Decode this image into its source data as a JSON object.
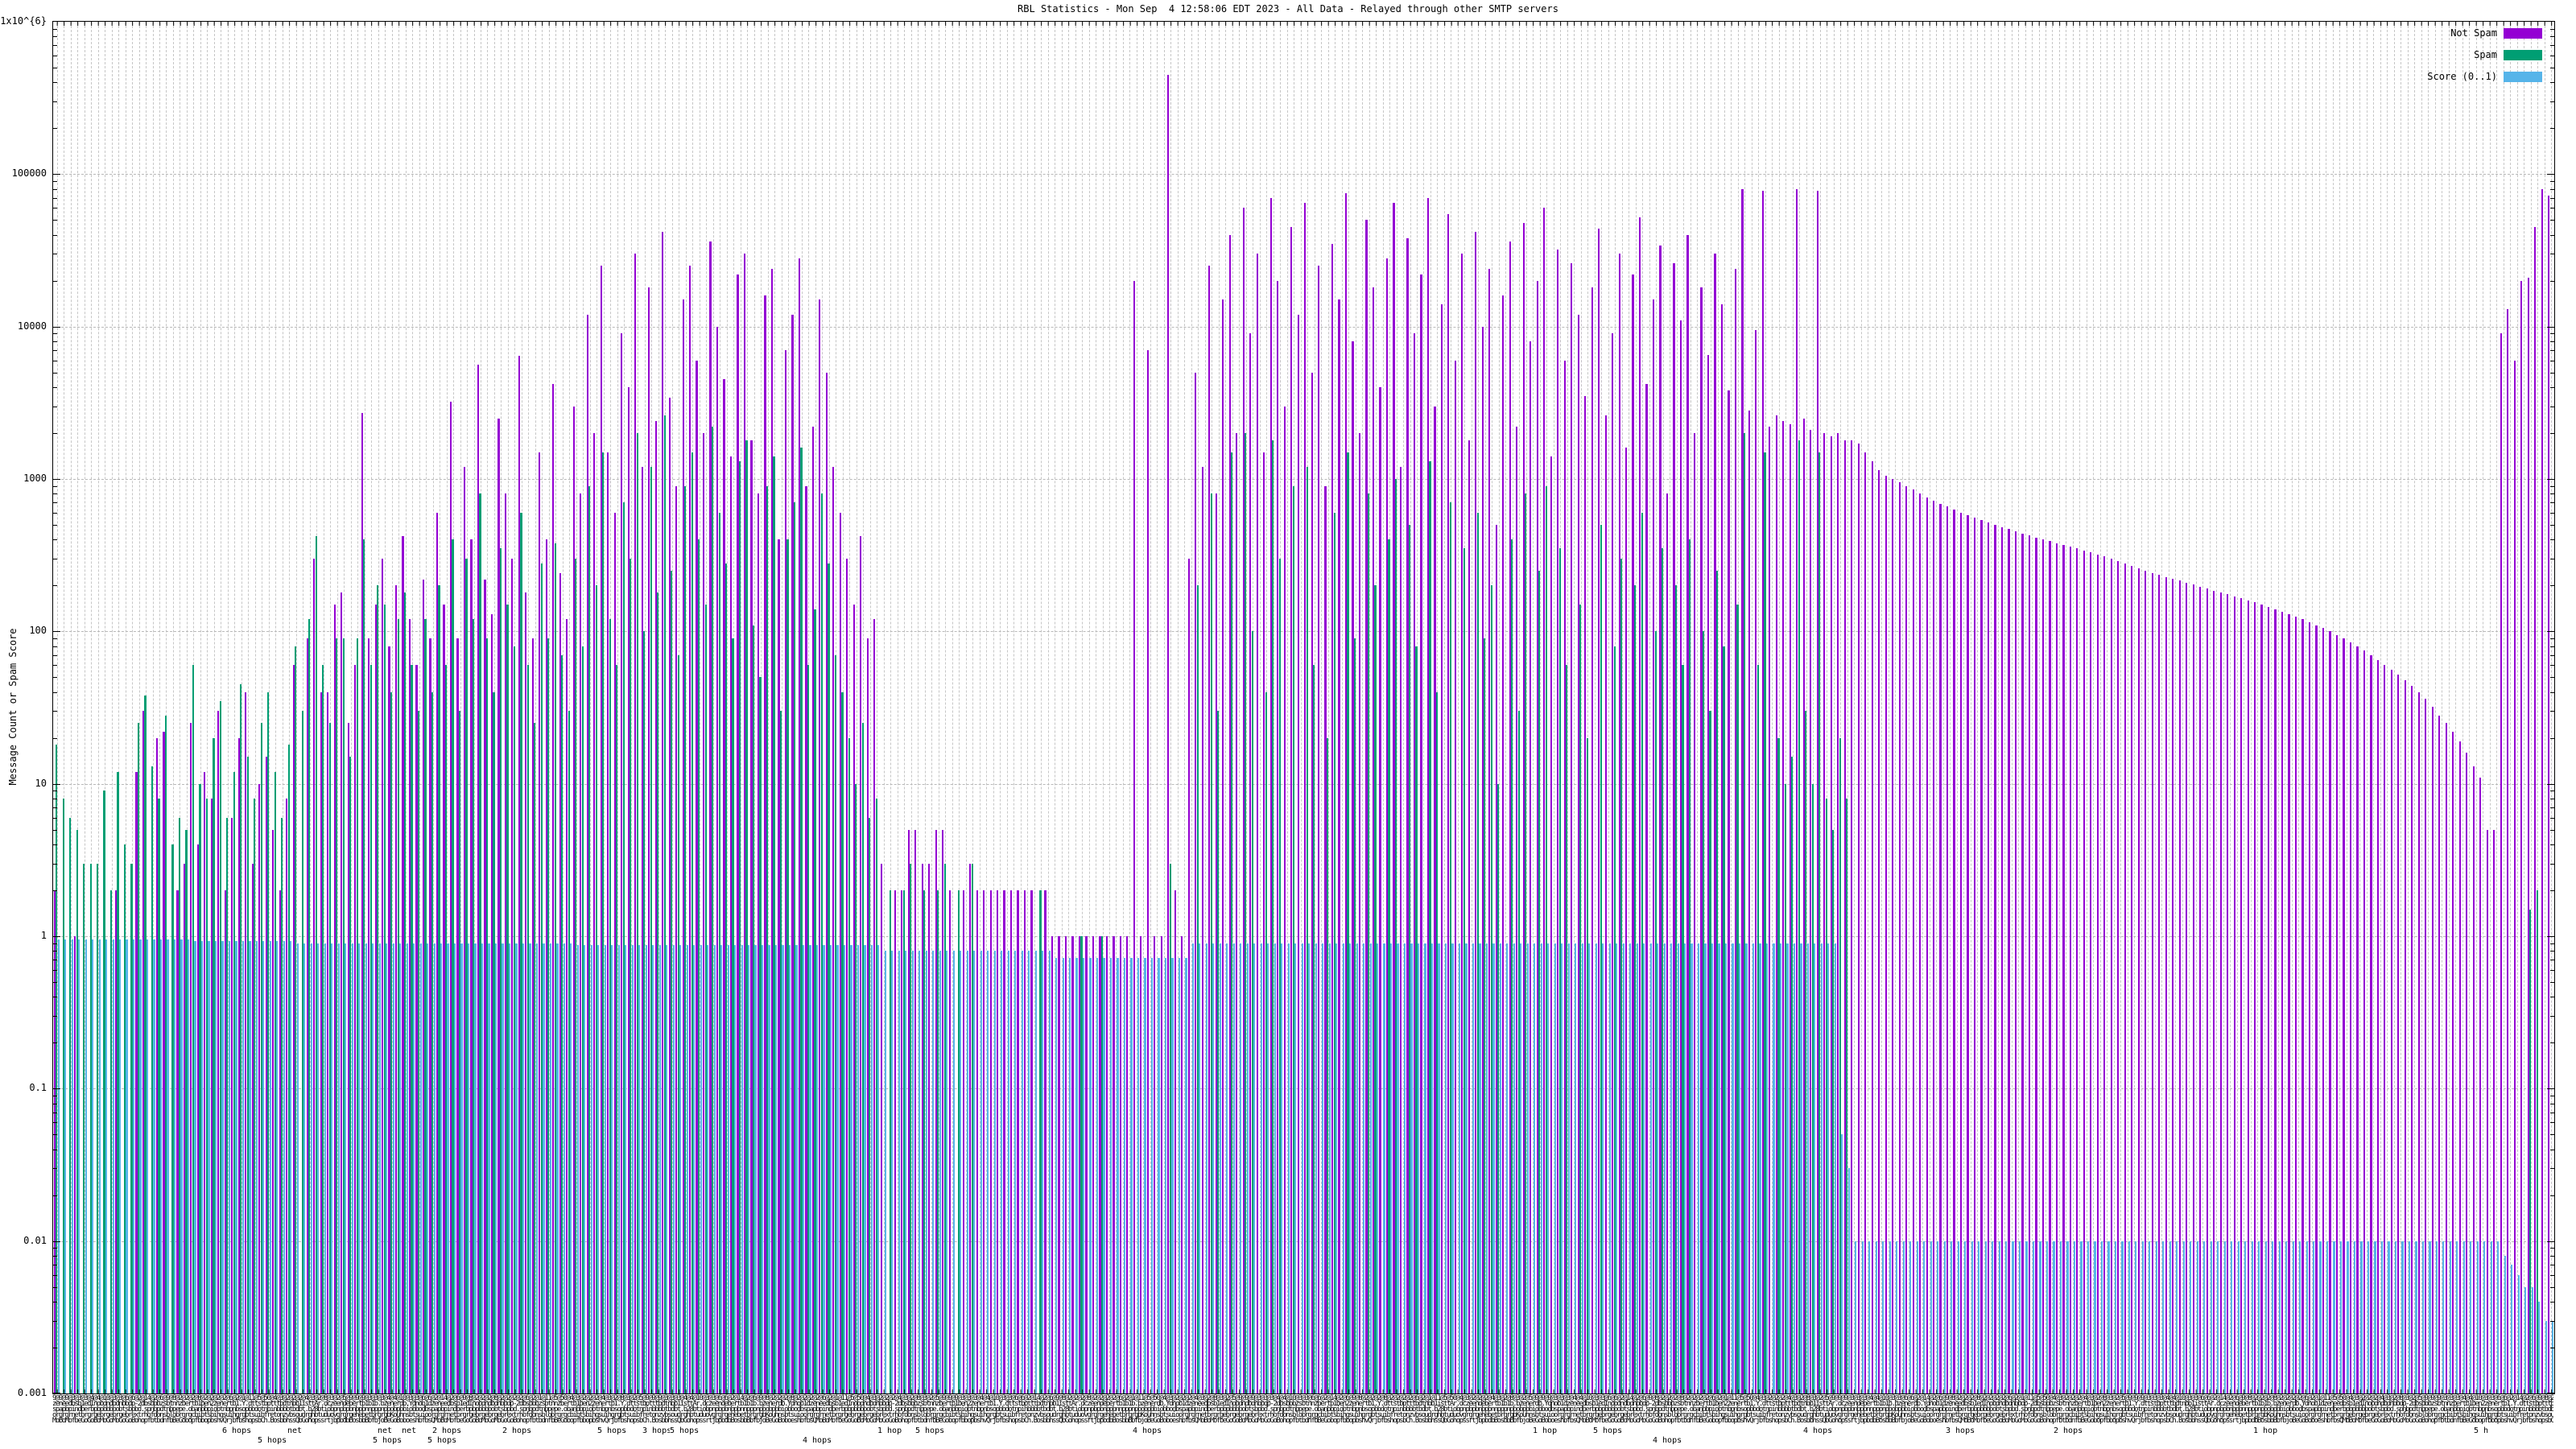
{
  "chart_data": {
    "type": "bar",
    "title": "RBL Statistics - Mon Sep  4 12:58:06 EDT 2023 - All Data - Relayed through other SMTP servers",
    "ylabel": "Message Count or Spam Score",
    "y_scale": "log",
    "ylim": [
      0.001,
      1000000
    ],
    "grid": true,
    "legend_position": "top-right",
    "y_axis": {
      "ticks": [
        {
          "label": "1x10^{6}",
          "value": 1000000
        },
        {
          "label": "100000",
          "value": 100000
        },
        {
          "label": "10000",
          "value": 10000
        },
        {
          "label": "1000",
          "value": 1000
        },
        {
          "label": "100",
          "value": 100
        },
        {
          "label": "10",
          "value": 10
        },
        {
          "label": "1",
          "value": 1
        },
        {
          "label": "0.1",
          "value": 0.1
        },
        {
          "label": "0.01",
          "value": 0.01
        },
        {
          "label": "0.001",
          "value": 0.001
        }
      ]
    },
    "x_axis": {
      "tick_label_style": "dense-overlapping-hostnames-illegible",
      "overlap_samples": [
        "9@9@9@3@3@3@4@4@10@3@3@6@6@2@14@2@6@9@8@2@2@2@8@2@2@2@2@6@2@1@11@5@50@4@3@2@2@2@4@3@2@8@3@2@5@",
        "zeneedbsb1edInobdndbdnbbdp-2dbsbbbzsbtnnzbertb1ben2zenertb1.Y.dttstbptttbdtnbb1isttAr.dczeendebertb1b1b.bzenerdb.Ydnob1d",
        "spapbpindberbpbpbbbbobtsbpbd.spnbpdtnbpepe.obanbbpiobtnbpnbsopbbdotnpinbbbbtbdbt.b28btiobpnpbpbnbpbnnpppnpbobpbbiobbodb",
        "orgrgrnetbrgrgebrgebrgebrextrhofdonsblobrgrgcbibtsbihgsuihgrgbtsuibfretonzvbsoudrghbtuduovgrgrgehebetbrgrgbKouhnsbtsuio",
        "MoBoMofbeGoGoBoMoGoMoGoGoBohopfbtbdnfbBeGobopfbbopbshvQrjbfbshopsbCh.BosbbhssQbGohopssrtjbpbdbBosbbBbfbjoBeGoBoboeshbfbsQ"
      ],
      "legible_fragments": [
        {
          "row": 0,
          "xf": 0.068,
          "text": "6 hops"
        },
        {
          "row": 0,
          "xf": 0.094,
          "text": "net"
        },
        {
          "row": 1,
          "xf": 0.082,
          "text": "5 hops"
        },
        {
          "row": 0,
          "xf": 0.13,
          "text": "net  net"
        },
        {
          "row": 1,
          "xf": 0.128,
          "text": "5 hops"
        },
        {
          "row": 0,
          "xf": 0.152,
          "text": "2 hops"
        },
        {
          "row": 1,
          "xf": 0.15,
          "text": "5 hops"
        },
        {
          "row": 0,
          "xf": 0.18,
          "text": "2 hops"
        },
        {
          "row": 0,
          "xf": 0.218,
          "text": "5 hops"
        },
        {
          "row": 0,
          "xf": 0.236,
          "text": "3 hops"
        },
        {
          "row": 0,
          "xf": 0.247,
          "text": "5 hops"
        },
        {
          "row": 0,
          "xf": 0.33,
          "text": "1 hop"
        },
        {
          "row": 1,
          "xf": 0.3,
          "text": "4 hops"
        },
        {
          "row": 0,
          "xf": 0.345,
          "text": "5 hops"
        },
        {
          "row": 0,
          "xf": 0.432,
          "text": "4 hops"
        },
        {
          "row": 0,
          "xf": 0.592,
          "text": "1 hop"
        },
        {
          "row": 0,
          "xf": 0.616,
          "text": "5 hops"
        },
        {
          "row": 1,
          "xf": 0.64,
          "text": "4 hops"
        },
        {
          "row": 0,
          "xf": 0.7,
          "text": "4 hops"
        },
        {
          "row": 0,
          "xf": 0.757,
          "text": "3 hops"
        },
        {
          "row": 0,
          "xf": 0.8,
          "text": "2 hops"
        },
        {
          "row": 0,
          "xf": 0.88,
          "text": "1 hop"
        },
        {
          "row": 0,
          "xf": 0.968,
          "text": "5 h"
        }
      ]
    },
    "series": [
      {
        "name": "Not Spam",
        "color": "#9400d3",
        "values": [
          2,
          0,
          0,
          1,
          0,
          0,
          0,
          0,
          0,
          2,
          0,
          0,
          12,
          30,
          0,
          20,
          22,
          0,
          2,
          3,
          25,
          4,
          12,
          8,
          30,
          2,
          6,
          20,
          40,
          3,
          10,
          15,
          5,
          2,
          8,
          60,
          0,
          90,
          300,
          40,
          40,
          150,
          180,
          25,
          60,
          2700,
          90,
          150,
          300,
          80,
          200,
          420,
          120,
          60,
          220,
          90,
          600,
          150,
          3200,
          90,
          1200,
          400,
          5600,
          220,
          130,
          2500,
          800,
          300,
          6400,
          180,
          90,
          1500,
          400,
          4200,
          240,
          120,
          3000,
          800,
          12000,
          2000,
          25000,
          1500,
          600,
          9000,
          4000,
          30000,
          1200,
          18000,
          2400,
          42000,
          3400,
          900,
          15000,
          25000,
          6000,
          2000,
          36000,
          10000,
          4500,
          1400,
          22000,
          30000,
          1800,
          800,
          16000,
          24000,
          400,
          7000,
          12000,
          28000,
          900,
          2200,
          15000,
          5000,
          1200,
          600,
          300,
          150,
          420,
          90,
          120,
          3,
          0,
          2,
          2,
          5,
          5,
          3,
          3,
          5,
          5,
          2,
          0,
          2,
          3,
          2,
          2,
          2,
          2,
          2,
          2,
          2,
          2,
          2,
          0,
          2,
          1,
          1,
          1,
          1,
          1,
          1,
          1,
          1,
          1,
          1,
          1,
          1,
          20000,
          1,
          7000,
          1,
          1,
          450000,
          2,
          1,
          300,
          5000,
          1200,
          25000,
          800,
          15000,
          40000,
          2000,
          60000,
          9000,
          30000,
          1500,
          70000,
          20000,
          3000,
          45000,
          12000,
          65000,
          5000,
          25000,
          900,
          35000,
          15000,
          75000,
          8000,
          2000,
          50000,
          18000,
          4000,
          28000,
          65000,
          1200,
          38000,
          9000,
          22000,
          70000,
          3000,
          14000,
          55000,
          6000,
          30000,
          1800,
          42000,
          10000,
          24000,
          500,
          16000,
          36000,
          2200,
          48000,
          8000,
          20000,
          60000,
          1400,
          32000,
          6000,
          26000,
          12000,
          3500,
          18000,
          44000,
          2600,
          9000,
          30000,
          1600,
          22000,
          52000,
          4200,
          15000,
          34000,
          800,
          26000,
          11000,
          40000,
          2000,
          18000,
          6500,
          30000,
          14000,
          3800,
          24000,
          80000,
          2800,
          9500,
          78000,
          2200,
          2600,
          2400,
          2300,
          80000,
          2500,
          2100,
          78000,
          2000,
          1900,
          2000,
          1800,
          1800,
          1700,
          1500,
          1300,
          1150,
          1050,
          1000,
          950,
          900,
          850,
          800,
          760,
          720,
          690,
          660,
          630,
          600,
          580,
          560,
          540,
          520,
          500,
          485,
          470,
          455,
          440,
          425,
          410,
          400,
          390,
          380,
          370,
          360,
          350,
          340,
          330,
          320,
          310,
          300,
          290,
          280,
          270,
          260,
          250,
          242,
          235,
          228,
          221,
          215,
          209,
          203,
          197,
          191,
          185,
          180,
          175,
          170,
          165,
          160,
          155,
          150,
          145,
          140,
          135,
          130,
          125,
          120,
          115,
          110,
          105,
          100,
          95,
          90,
          85,
          80,
          75,
          70,
          65,
          60,
          56,
          52,
          48,
          44,
          40,
          36,
          32,
          28,
          25,
          22,
          19,
          16,
          13,
          11,
          5,
          5,
          9000,
          13000,
          6000,
          20000,
          21000,
          45000,
          80000,
          72000
        ]
      },
      {
        "name": "Spam",
        "color": "#009e73",
        "values": [
          18,
          8,
          6,
          5,
          3,
          3,
          3,
          9,
          2,
          12,
          4,
          3,
          25,
          38,
          13,
          8,
          28,
          4,
          6,
          5,
          60,
          10,
          8,
          20,
          35,
          6,
          12,
          45,
          15,
          8,
          25,
          40,
          12,
          6,
          18,
          80,
          30,
          120,
          420,
          60,
          25,
          90,
          90,
          15,
          90,
          400,
          60,
          200,
          150,
          40,
          120,
          180,
          60,
          30,
          120,
          40,
          200,
          60,
          400,
          30,
          300,
          120,
          800,
          90,
          40,
          350,
          150,
          80,
          600,
          60,
          25,
          280,
          90,
          380,
          70,
          30,
          300,
          80,
          900,
          200,
          1500,
          120,
          60,
          700,
          300,
          2000,
          100,
          1200,
          180,
          2600,
          250,
          70,
          900,
          1500,
          400,
          150,
          2200,
          600,
          280,
          90,
          1300,
          1800,
          110,
          50,
          900,
          1400,
          30,
          400,
          700,
          1600,
          60,
          140,
          800,
          280,
          70,
          40,
          20,
          10,
          25,
          6,
          8,
          0,
          2,
          0,
          2,
          3,
          0,
          2,
          0,
          2,
          3,
          0,
          2,
          0,
          3,
          0,
          0,
          0,
          0,
          0,
          0,
          0,
          0,
          0,
          2,
          0,
          0,
          0,
          0,
          0,
          1,
          0,
          0,
          1,
          0,
          0,
          0,
          0,
          0,
          0,
          0,
          0,
          0,
          3,
          0,
          0,
          0,
          200,
          0,
          800,
          30,
          0,
          1500,
          0,
          2000,
          100,
          0,
          40,
          1800,
          300,
          0,
          900,
          0,
          1200,
          60,
          0,
          20,
          600,
          0,
          1500,
          90,
          0,
          800,
          200,
          0,
          400,
          1000,
          0,
          500,
          80,
          0,
          1300,
          40,
          0,
          700,
          0,
          350,
          0,
          600,
          90,
          200,
          10,
          0,
          400,
          30,
          800,
          0,
          250,
          900,
          0,
          350,
          60,
          0,
          150,
          20,
          0,
          500,
          0,
          80,
          300,
          0,
          200,
          600,
          0,
          100,
          350,
          0,
          200,
          60,
          400,
          0,
          100,
          30,
          250,
          80,
          0,
          150,
          2000,
          0,
          60,
          1500,
          0,
          20,
          10,
          15,
          1800,
          30,
          10,
          1500,
          8,
          5,
          20,
          8,
          0,
          0,
          0,
          0,
          0,
          0,
          0,
          0,
          0,
          0,
          0,
          0,
          0,
          0,
          0,
          0,
          0,
          0,
          0,
          0,
          0,
          0,
          0,
          0,
          0,
          0,
          0,
          0,
          0,
          0,
          0,
          0,
          0,
          0,
          0,
          0,
          0,
          0,
          0,
          0,
          0,
          0,
          0,
          0,
          0,
          0,
          0,
          0,
          0,
          0,
          0,
          0,
          0,
          0,
          0,
          0,
          0,
          0,
          0,
          0,
          0,
          0,
          0,
          0,
          0,
          0,
          0,
          0,
          0,
          0,
          0,
          0,
          0,
          0,
          0,
          0,
          0,
          0,
          0,
          0,
          0,
          0,
          0,
          0,
          0,
          0,
          0,
          0,
          0,
          0,
          0,
          0,
          0,
          0,
          0,
          0,
          0,
          0,
          0,
          1.5,
          2,
          0,
          0
        ]
      },
      {
        "name": "Score (0..1)",
        "color": "#56b4e9",
        "value_runs": [
          [
            0.95,
            20
          ],
          [
            0.93,
            15
          ],
          [
            0.9,
            41
          ],
          [
            0.88,
            45
          ],
          [
            0.8,
            25
          ],
          [
            0.72,
            20
          ],
          [
            0.9,
            95
          ],
          [
            0.05,
            1
          ],
          [
            0.03,
            1
          ],
          [
            0.01,
            95
          ],
          [
            0.008,
            1
          ],
          [
            0.007,
            1
          ],
          [
            0.006,
            1
          ],
          [
            0.005,
            2
          ],
          [
            0.004,
            1
          ],
          [
            0.003,
            2
          ]
        ]
      }
    ]
  }
}
